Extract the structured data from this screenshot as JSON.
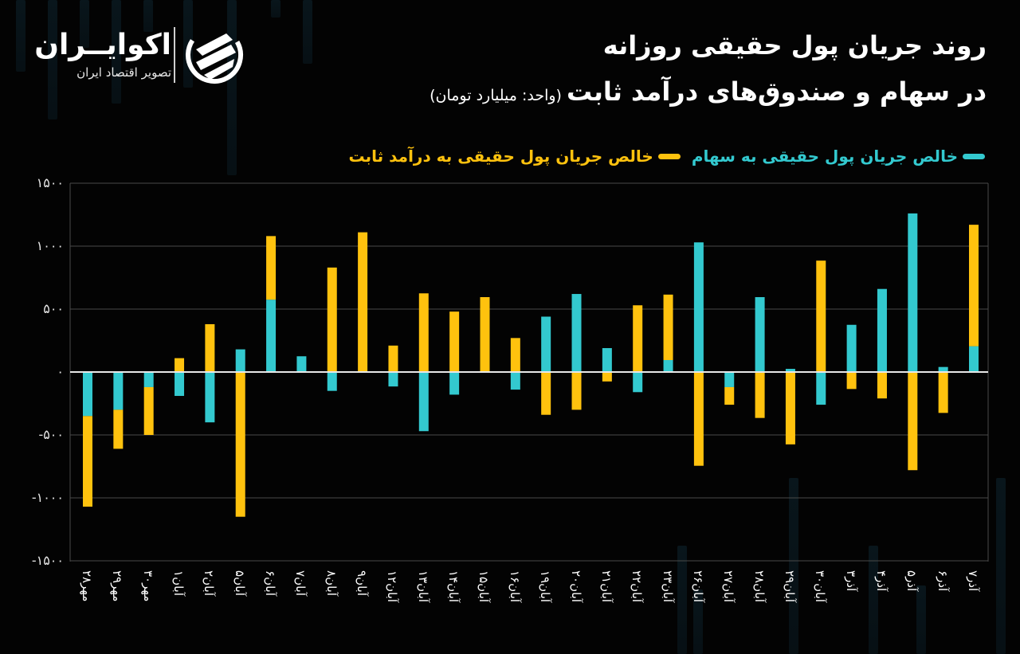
{
  "header": {
    "logo_name": "اکوایــران",
    "logo_tagline": "تصویر اقتصاد ایران",
    "title_line1": "روند جریان پول حقیقی روزانه",
    "title_line2": "در سهام و صندوق‌های درآمد ثابت",
    "unit_note": "(واحد: میلیارد تومان)"
  },
  "legend": [
    {
      "label": "خالص جریان پول حقیقی به سهام",
      "color": "#33c9cf"
    },
    {
      "label": "خالص جریان پول حقیقی به درآمد ثابت",
      "color": "#ffc20e"
    }
  ],
  "colors": {
    "background": "#030303",
    "stocks": "#33c9cf",
    "fixed_income": "#ffc20e",
    "grid": "#4a4a4a",
    "zero_line": "#e8e8e8"
  },
  "chart_data": {
    "type": "bar",
    "stacked": true,
    "title": "روند جریان پول حقیقی روزانه در سهام و صندوق‌های درآمد ثابت",
    "subtitle": "(واحد: میلیارد تومان)",
    "xlabel": "",
    "ylabel": "",
    "ylim": [
      -1500,
      1500
    ],
    "yticks": [
      1500,
      1000,
      500,
      0,
      -500,
      -1000,
      -1500
    ],
    "ytick_labels": [
      "۱۵۰۰",
      "۱۰۰۰",
      "۵۰۰",
      "۰",
      "-۵۰۰",
      "-۱۰۰۰",
      "-۱۵۰۰"
    ],
    "grid": true,
    "legend_position": "top-right",
    "categories": [
      "مهر۲۸",
      "مهر۲۹",
      "مهر۳۰",
      "آبان۱",
      "آبان۲",
      "آبان۵",
      "آبان۶",
      "آبان۷",
      "آبان۸",
      "آبان۹",
      "آبان۱۲",
      "آبان۱۳",
      "آبان۱۴",
      "آبان۱۵",
      "آبان۱۶",
      "آبان۱۹",
      "آبان۲۰",
      "آبان۲۱",
      "آبان۲۲",
      "آبان۲۳",
      "آبان۲۶",
      "آبان۲۷",
      "آبان۲۸",
      "آبان۲۹",
      "آبان۳۰",
      "آذر۳",
      "آذر۴",
      "آذر۵",
      "آذر۶",
      "آذر۷"
    ],
    "series": [
      {
        "name": "خالص جریان پول حقیقی به سهام",
        "color": "#33c9cf",
        "values": [
          -350,
          -300,
          -120,
          -190,
          -400,
          180,
          575,
          125,
          -150,
          0,
          -115,
          -470,
          -180,
          0,
          -140,
          440,
          620,
          190,
          -160,
          95,
          1030,
          -120,
          595,
          25,
          -260,
          375,
          660,
          1260,
          40,
          205
        ]
      },
      {
        "name": "خالص جریان پول حقیقی به درآمد ثابت",
        "color": "#ffc20e",
        "values": [
          -720,
          -310,
          -380,
          110,
          380,
          -1150,
          505,
          0,
          830,
          1110,
          210,
          625,
          480,
          595,
          270,
          -340,
          -300,
          -75,
          530,
          520,
          -745,
          -140,
          -365,
          -575,
          885,
          -135,
          -210,
          -780,
          -325,
          965
        ]
      }
    ]
  }
}
